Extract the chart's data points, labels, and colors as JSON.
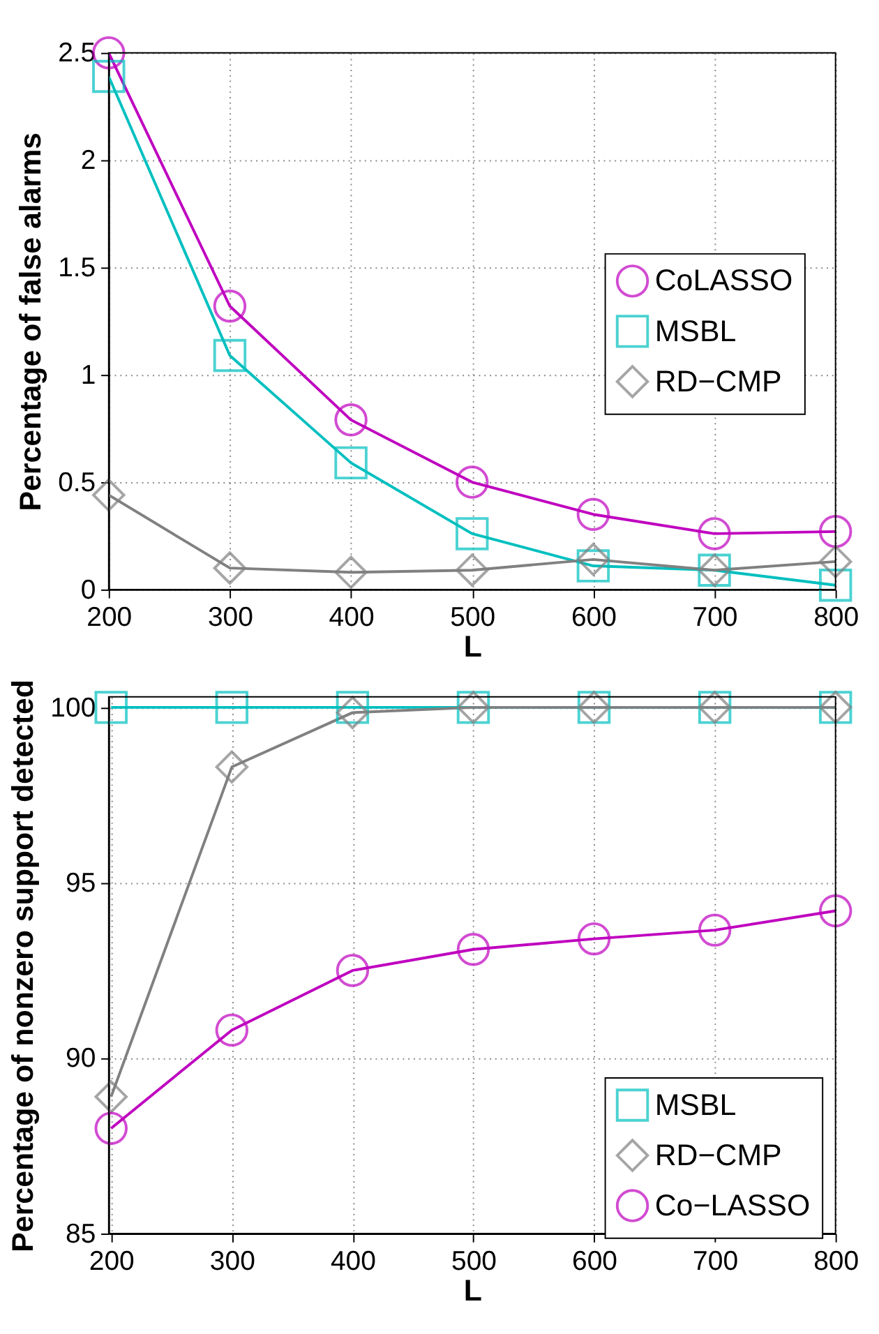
{
  "chart_data": [
    {
      "type": "line",
      "xlabel": "L",
      "ylabel": "Percentage of false alarms",
      "x": [
        200,
        300,
        400,
        500,
        600,
        700,
        800
      ],
      "xlim": [
        200,
        800
      ],
      "xticks": [
        200,
        300,
        400,
        500,
        600,
        700,
        800
      ],
      "ylim": [
        0,
        2.5
      ],
      "yticks": [
        0,
        0.5,
        1,
        1.5,
        2,
        2.5
      ],
      "grid": true,
      "legend": "right",
      "series": [
        {
          "name": "CoLASSO",
          "color": "#bf00bf",
          "marker": "circle",
          "values": [
            2.5,
            1.32,
            0.79,
            0.5,
            0.35,
            0.26,
            0.27
          ]
        },
        {
          "name": "MSBL",
          "color": "#00bfbf",
          "marker": "square",
          "values": [
            2.39,
            1.09,
            0.59,
            0.26,
            0.11,
            0.09,
            0.02
          ]
        },
        {
          "name": "RD−CMP",
          "color": "#808080",
          "marker": "diamond",
          "values": [
            0.44,
            0.1,
            0.08,
            0.09,
            0.14,
            0.09,
            0.13
          ]
        }
      ]
    },
    {
      "type": "line",
      "xlabel": "L",
      "ylabel": "Percentage of nonzero support detected",
      "x": [
        200,
        300,
        400,
        500,
        600,
        700,
        800
      ],
      "xlim": [
        198,
        800
      ],
      "xticks": [
        200,
        300,
        400,
        500,
        600,
        700,
        800
      ],
      "ylim": [
        85,
        100.3
      ],
      "yticks": [
        85,
        90,
        95,
        100
      ],
      "grid": true,
      "legend": "bottom right",
      "series": [
        {
          "name": "MSBL",
          "color": "#00bfbf",
          "marker": "square",
          "values": [
            100,
            100,
            100,
            100,
            100,
            100,
            100
          ]
        },
        {
          "name": "RD−CMP",
          "color": "#808080",
          "marker": "diamond",
          "values": [
            88.9,
            98.3,
            99.85,
            100,
            100,
            100,
            100
          ]
        },
        {
          "name": "Co−LASSO",
          "color": "#bf00bf",
          "marker": "circle",
          "values": [
            88.0,
            90.8,
            92.5,
            93.1,
            93.4,
            93.65,
            94.2
          ]
        }
      ]
    }
  ]
}
